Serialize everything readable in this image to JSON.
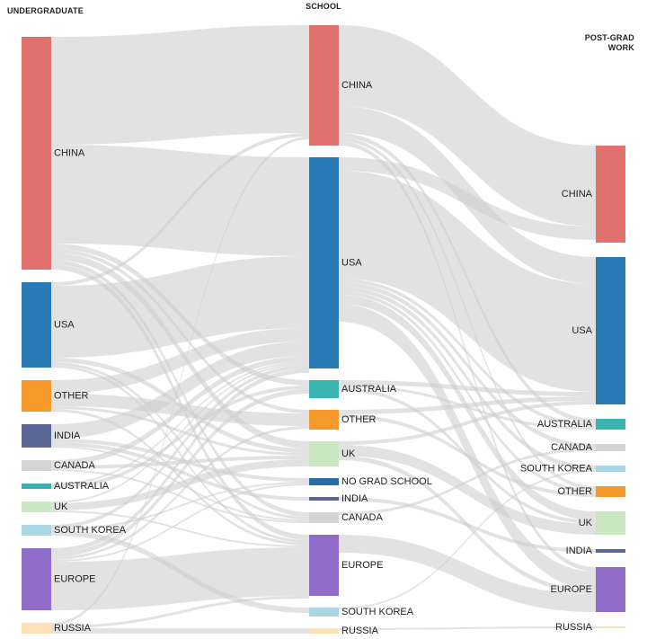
{
  "columns": [
    {
      "title": "UNDERGRADUATE",
      "nodes": [
        {
          "label": "CHINA",
          "value": 259,
          "color": "#e0716f"
        },
        {
          "label": "USA",
          "value": 95,
          "color": "#2a7ab5"
        },
        {
          "label": "OTHER",
          "value": 35,
          "color": "#f59a2a"
        },
        {
          "label": "INDIA",
          "value": 26,
          "color": "#5b6796"
        },
        {
          "label": "CANADA",
          "value": 12,
          "color": "#d4d4d4"
        },
        {
          "label": "AUSTRALIA",
          "value": 6,
          "color": "#3bb3b0"
        },
        {
          "label": "UK",
          "value": 12,
          "color": "#c9e8c2"
        },
        {
          "label": "SOUTH KOREA",
          "value": 12,
          "color": "#a9d5e4"
        },
        {
          "label": "EUROPE",
          "value": 69,
          "color": "#8e6cc8"
        },
        {
          "label": "RUSSIA",
          "value": 12,
          "color": "#fde2b8"
        }
      ]
    },
    {
      "title": "SCHOOL",
      "nodes": [
        {
          "label": "CHINA",
          "value": 134,
          "color": "#e0716f"
        },
        {
          "label": "USA",
          "value": 235,
          "color": "#2a7ab5"
        },
        {
          "label": "AUSTRALIA",
          "value": 20,
          "color": "#3bb3b0"
        },
        {
          "label": "OTHER",
          "value": 22,
          "color": "#f59a2a"
        },
        {
          "label": "UK",
          "value": 28,
          "color": "#c9e8c2"
        },
        {
          "label": "NO GRAD SCHOOL",
          "value": 8,
          "color": "#2b6ca8"
        },
        {
          "label": "INDIA",
          "value": 4,
          "color": "#5b6796"
        },
        {
          "label": "CANADA",
          "value": 12,
          "color": "#d4d4d4"
        },
        {
          "label": "EUROPE",
          "value": 68,
          "color": "#8e6cc8"
        },
        {
          "label": "SOUTH KOREA",
          "value": 10,
          "color": "#a9d5e4"
        },
        {
          "label": "RUSSIA",
          "value": 6,
          "color": "#fde2b8"
        }
      ]
    },
    {
      "title": "POST-GRAD WORK",
      "nodes": [
        {
          "label": "CHINA",
          "value": 108,
          "color": "#e0716f"
        },
        {
          "label": "USA",
          "value": 164,
          "color": "#2a7ab5"
        },
        {
          "label": "AUSTRALIA",
          "value": 12,
          "color": "#3bb3b0"
        },
        {
          "label": "CANADA",
          "value": 8,
          "color": "#d4d4d4"
        },
        {
          "label": "SOUTH KOREA",
          "value": 7,
          "color": "#a9d5e4"
        },
        {
          "label": "OTHER",
          "value": 12,
          "color": "#f59a2a"
        },
        {
          "label": "UK",
          "value": 26,
          "color": "#c9e8c2"
        },
        {
          "label": "INDIA",
          "value": 4,
          "color": "#5b6796"
        },
        {
          "label": "EUROPE",
          "value": 50,
          "color": "#8e6cc8"
        },
        {
          "label": "RUSSIA",
          "value": 2,
          "color": "#fde2b8"
        }
      ]
    }
  ],
  "link_color": "#cfcfcf",
  "links": [
    [
      {
        "source": 0,
        "target": 0,
        "value": 120
      },
      {
        "source": 0,
        "target": 1,
        "value": 110
      },
      {
        "source": 0,
        "target": 2,
        "value": 6
      },
      {
        "source": 0,
        "target": 3,
        "value": 4
      },
      {
        "source": 0,
        "target": 4,
        "value": 8
      },
      {
        "source": 0,
        "target": 7,
        "value": 5
      },
      {
        "source": 0,
        "target": 8,
        "value": 6
      },
      {
        "source": 1,
        "target": 0,
        "value": 4
      },
      {
        "source": 1,
        "target": 1,
        "value": 80
      },
      {
        "source": 1,
        "target": 4,
        "value": 5
      },
      {
        "source": 1,
        "target": 7,
        "value": 3
      },
      {
        "source": 1,
        "target": 8,
        "value": 3
      },
      {
        "source": 2,
        "target": 1,
        "value": 15
      },
      {
        "source": 2,
        "target": 3,
        "value": 14
      },
      {
        "source": 2,
        "target": 4,
        "value": 3
      },
      {
        "source": 2,
        "target": 8,
        "value": 3
      },
      {
        "source": 3,
        "target": 1,
        "value": 16
      },
      {
        "source": 3,
        "target": 5,
        "value": 4
      },
      {
        "source": 3,
        "target": 6,
        "value": 4
      },
      {
        "source": 3,
        "target": 7,
        "value": 2
      },
      {
        "source": 4,
        "target": 1,
        "value": 6
      },
      {
        "source": 4,
        "target": 4,
        "value": 4
      },
      {
        "source": 4,
        "target": 7,
        "value": 2
      },
      {
        "source": 5,
        "target": 1,
        "value": 2
      },
      {
        "source": 5,
        "target": 2,
        "value": 4
      },
      {
        "source": 6,
        "target": 1,
        "value": 2
      },
      {
        "source": 6,
        "target": 4,
        "value": 8
      },
      {
        "source": 6,
        "target": 8,
        "value": 2
      },
      {
        "source": 7,
        "target": 1,
        "value": 4
      },
      {
        "source": 7,
        "target": 5,
        "value": 2
      },
      {
        "source": 7,
        "target": 9,
        "value": 6
      },
      {
        "source": 8,
        "target": 1,
        "value": 5
      },
      {
        "source": 8,
        "target": 2,
        "value": 5
      },
      {
        "source": 8,
        "target": 3,
        "value": 3
      },
      {
        "source": 8,
        "target": 5,
        "value": 2
      },
      {
        "source": 8,
        "target": 8,
        "value": 54
      },
      {
        "source": 9,
        "target": 0,
        "value": 3
      },
      {
        "source": 9,
        "target": 8,
        "value": 3
      },
      {
        "source": 9,
        "target": 10,
        "value": 6
      }
    ],
    [
      {
        "source": 0,
        "target": 0,
        "value": 90
      },
      {
        "source": 0,
        "target": 1,
        "value": 30
      },
      {
        "source": 0,
        "target": 2,
        "value": 5
      },
      {
        "source": 0,
        "target": 5,
        "value": 4
      },
      {
        "source": 0,
        "target": 8,
        "value": 5
      },
      {
        "source": 1,
        "target": 0,
        "value": 15
      },
      {
        "source": 1,
        "target": 1,
        "value": 120
      },
      {
        "source": 1,
        "target": 2,
        "value": 4
      },
      {
        "source": 1,
        "target": 3,
        "value": 5
      },
      {
        "source": 1,
        "target": 4,
        "value": 5
      },
      {
        "source": 1,
        "target": 5,
        "value": 4
      },
      {
        "source": 1,
        "target": 6,
        "value": 10
      },
      {
        "source": 1,
        "target": 8,
        "value": 20
      },
      {
        "source": 2,
        "target": 1,
        "value": 5
      },
      {
        "source": 2,
        "target": 2,
        "value": 3
      },
      {
        "source": 2,
        "target": 6,
        "value": 4
      },
      {
        "source": 3,
        "target": 1,
        "value": 5
      },
      {
        "source": 3,
        "target": 5,
        "value": 4
      },
      {
        "source": 4,
        "target": 1,
        "value": 4
      },
      {
        "source": 4,
        "target": 6,
        "value": 12
      },
      {
        "source": 4,
        "target": 8,
        "value": 5
      },
      {
        "source": 6,
        "target": 7,
        "value": 4
      },
      {
        "source": 7,
        "target": 3,
        "value": 3
      },
      {
        "source": 8,
        "target": 8,
        "value": 20
      },
      {
        "source": 9,
        "target": 4,
        "value": 2
      },
      {
        "source": 10,
        "target": 9,
        "value": 2
      }
    ]
  ]
}
